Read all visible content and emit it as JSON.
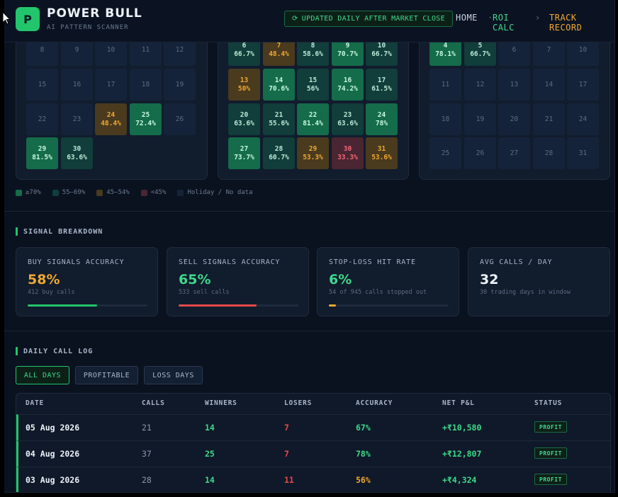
{
  "header": {
    "logo_letter": "P",
    "brand": "POWER BULL",
    "tagline": "AI PATTERN SCANNER",
    "update_label": "UPDATED DAILY AFTER MARKET CLOSE",
    "nav": [
      {
        "label": "HOME",
        "color": "#c9d4e3"
      },
      {
        "label": "·",
        "color": "#5d6b80"
      },
      {
        "label": "ROI CALC",
        "color": "#3fd88a"
      },
      {
        "label": "›",
        "color": "#5d6b80"
      },
      {
        "label": "TRACK RECORD",
        "color": "#f0a830"
      }
    ]
  },
  "calendars": [
    {
      "cells": [
        {
          "d": "8",
          "p": "",
          "c": "e"
        },
        {
          "d": "9",
          "p": "",
          "c": "e"
        },
        {
          "d": "10",
          "p": "",
          "c": "e"
        },
        {
          "d": "11",
          "p": "",
          "c": "e"
        },
        {
          "d": "12",
          "p": "",
          "c": "e"
        },
        {
          "d": "15",
          "p": "",
          "c": "e"
        },
        {
          "d": "16",
          "p": "",
          "c": "e"
        },
        {
          "d": "17",
          "p": "",
          "c": "e"
        },
        {
          "d": "18",
          "p": "",
          "c": "e"
        },
        {
          "d": "19",
          "p": "",
          "c": "e"
        },
        {
          "d": "22",
          "p": "",
          "c": "e"
        },
        {
          "d": "23",
          "p": "",
          "c": "e"
        },
        {
          "d": "24",
          "p": "48.4%",
          "c": "o"
        },
        {
          "d": "25",
          "p": "72.4%",
          "c": "g"
        },
        {
          "d": "26",
          "p": "",
          "c": "e"
        },
        {
          "d": "29",
          "p": "81.5%",
          "c": "g"
        },
        {
          "d": "30",
          "p": "63.6%",
          "c": "t"
        },
        null,
        null,
        null
      ]
    },
    {
      "cells": [
        {
          "d": "6",
          "p": "66.7%",
          "c": "t"
        },
        {
          "d": "7",
          "p": "48.4%",
          "c": "o"
        },
        {
          "d": "8",
          "p": "58.6%",
          "c": "t"
        },
        {
          "d": "9",
          "p": "70.7%",
          "c": "g"
        },
        {
          "d": "10",
          "p": "66.7%",
          "c": "t"
        },
        {
          "d": "13",
          "p": "50%",
          "c": "o"
        },
        {
          "d": "14",
          "p": "70.6%",
          "c": "g"
        },
        {
          "d": "15",
          "p": "56%",
          "c": "t"
        },
        {
          "d": "16",
          "p": "74.2%",
          "c": "g"
        },
        {
          "d": "17",
          "p": "61.5%",
          "c": "t"
        },
        {
          "d": "20",
          "p": "63.6%",
          "c": "t"
        },
        {
          "d": "21",
          "p": "55.6%",
          "c": "t"
        },
        {
          "d": "22",
          "p": "81.4%",
          "c": "g"
        },
        {
          "d": "23",
          "p": "63.6%",
          "c": "t"
        },
        {
          "d": "24",
          "p": "78%",
          "c": "g"
        },
        {
          "d": "27",
          "p": "73.7%",
          "c": "g"
        },
        {
          "d": "28",
          "p": "60.7%",
          "c": "t"
        },
        {
          "d": "29",
          "p": "53.3%",
          "c": "o"
        },
        {
          "d": "30",
          "p": "33.3%",
          "c": "r"
        },
        {
          "d": "31",
          "p": "53.6%",
          "c": "o"
        }
      ]
    },
    {
      "cells": [
        {
          "d": "4",
          "p": "78.1%",
          "c": "g"
        },
        {
          "d": "5",
          "p": "66.7%",
          "c": "t"
        },
        {
          "d": "6",
          "p": "",
          "c": "e"
        },
        {
          "d": "7",
          "p": "",
          "c": "e"
        },
        {
          "d": "10",
          "p": "",
          "c": "e"
        },
        {
          "d": "11",
          "p": "",
          "c": "e"
        },
        {
          "d": "12",
          "p": "",
          "c": "e"
        },
        {
          "d": "13",
          "p": "",
          "c": "e"
        },
        {
          "d": "14",
          "p": "",
          "c": "e"
        },
        {
          "d": "17",
          "p": "",
          "c": "e"
        },
        {
          "d": "18",
          "p": "",
          "c": "e"
        },
        {
          "d": "19",
          "p": "",
          "c": "e"
        },
        {
          "d": "20",
          "p": "",
          "c": "e"
        },
        {
          "d": "21",
          "p": "",
          "c": "e"
        },
        {
          "d": "24",
          "p": "",
          "c": "e"
        },
        {
          "d": "25",
          "p": "",
          "c": "e"
        },
        {
          "d": "26",
          "p": "",
          "c": "e"
        },
        {
          "d": "27",
          "p": "",
          "c": "e"
        },
        {
          "d": "28",
          "p": "",
          "c": "e"
        },
        {
          "d": "31",
          "p": "",
          "c": "e"
        }
      ]
    }
  ],
  "legend": [
    {
      "label": "≥70%",
      "color": "#146c4a"
    },
    {
      "label": "55–69%",
      "color": "#113d3a"
    },
    {
      "label": "45–54%",
      "color": "#4a3a1e"
    },
    {
      "label": "<45%",
      "color": "#4a2532"
    },
    {
      "label": "Holiday / No data",
      "color": "#15233a"
    }
  ],
  "signal_breakdown": {
    "title": "SIGNAL BREAKDOWN",
    "cards": [
      {
        "title": "BUY SIGNALS ACCURACY",
        "value": "58%",
        "sub": "412 buy calls",
        "color": "#f0a830",
        "bar_color": "#22c56b",
        "progress": 0.58
      },
      {
        "title": "SELL SIGNALS ACCURACY",
        "value": "65%",
        "sub": "533 sell calls",
        "color": "#3fd88a",
        "bar_color": "#e84a4a",
        "progress": 0.65
      },
      {
        "title": "STOP-LOSS HIT RATE",
        "value": "6%",
        "sub": "54 of 945 calls stopped out",
        "color": "#3fd88a",
        "bar_color": "#f0a830",
        "progress": 0.06
      },
      {
        "title": "AVG CALLS / DAY",
        "value": "32",
        "sub": "30 trading days in window",
        "color": "#eef3fa",
        "bar_color": "",
        "progress": null
      }
    ]
  },
  "call_log": {
    "title": "DAILY CALL LOG",
    "filters": [
      "ALL DAYS",
      "PROFITABLE",
      "LOSS DAYS"
    ],
    "active_filter": 0,
    "columns": [
      "DATE",
      "CALLS",
      "WINNERS",
      "LOSERS",
      "ACCURACY",
      "NET P&L",
      "STATUS"
    ],
    "rows": [
      {
        "date": "05 Aug 2026",
        "calls": "21",
        "winners": "14",
        "losers": "7",
        "accuracy": "67%",
        "acc_color": "#3fd88a",
        "pnl": "+₹10,580",
        "status": "PROFIT"
      },
      {
        "date": "04 Aug 2026",
        "calls": "37",
        "winners": "25",
        "losers": "7",
        "accuracy": "78%",
        "acc_color": "#3fd88a",
        "pnl": "+₹12,807",
        "status": "PROFIT"
      },
      {
        "date": "03 Aug 2026",
        "calls": "28",
        "winners": "14",
        "losers": "11",
        "accuracy": "56%",
        "acc_color": "#f0a830",
        "pnl": "+₹4,324",
        "status": "PROFIT"
      }
    ]
  }
}
